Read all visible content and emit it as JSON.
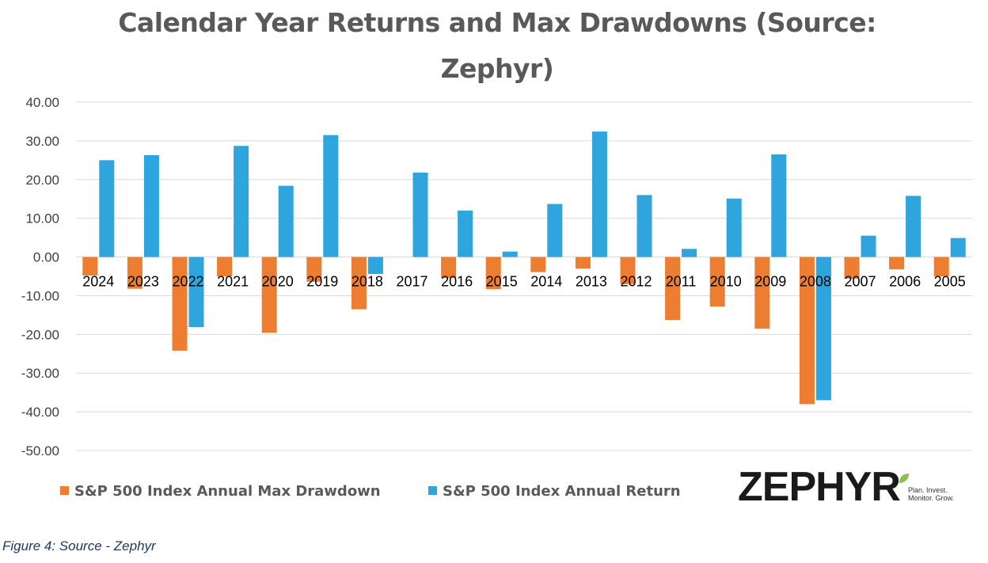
{
  "chart_data": {
    "type": "bar",
    "title": "Calendar Year Returns and Max Drawdowns (Source: Zephyr)",
    "title_lines": [
      "Calendar Year Returns and Max Drawdowns (Source:",
      "Zephyr)"
    ],
    "categories": [
      "2024",
      "2023",
      "2022",
      "2021",
      "2020",
      "2019",
      "2018",
      "2017",
      "2016",
      "2015",
      "2014",
      "2013",
      "2012",
      "2011",
      "2010",
      "2009",
      "2008",
      "2007",
      "2006",
      "2005"
    ],
    "series": [
      {
        "name": "S&P 500 Index Annual Max Drawdown",
        "color": "#ED7D31",
        "values": [
          -4.8,
          -8.2,
          -24.2,
          -5.0,
          -19.6,
          -6.4,
          -13.5,
          0,
          -5.4,
          -8.3,
          -3.9,
          -3.0,
          -7.0,
          -16.3,
          -12.8,
          -18.5,
          -38.0,
          -5.6,
          -3.2,
          -5.0
        ]
      },
      {
        "name": "S&P 500 Index Annual Return",
        "color": "#2EA6DD",
        "values": [
          25.0,
          26.3,
          -18.1,
          28.7,
          18.4,
          31.5,
          -4.4,
          21.8,
          12.0,
          1.4,
          13.7,
          32.4,
          16.0,
          2.1,
          15.1,
          26.5,
          -37.0,
          5.5,
          15.8,
          4.9
        ]
      }
    ],
    "y_ticks": [
      "40.00",
      "30.00",
      "20.00",
      "10.00",
      "0.00",
      "-10.00",
      "-20.00",
      "-30.00",
      "-40.00",
      "-50.00"
    ],
    "ylim": [
      -50,
      40
    ],
    "y_step": 10,
    "grid": true,
    "legend_position": "bottom-left",
    "xlabel": "",
    "ylabel": ""
  },
  "logo": {
    "word": "ZEPHY",
    "word_end": "R",
    "tagline_1": "Plan. Invest.",
    "tagline_2": "Monitor. Grow.",
    "leaf_color": "#8BC34A"
  },
  "caption": "Figure 4: Source - Zephyr"
}
